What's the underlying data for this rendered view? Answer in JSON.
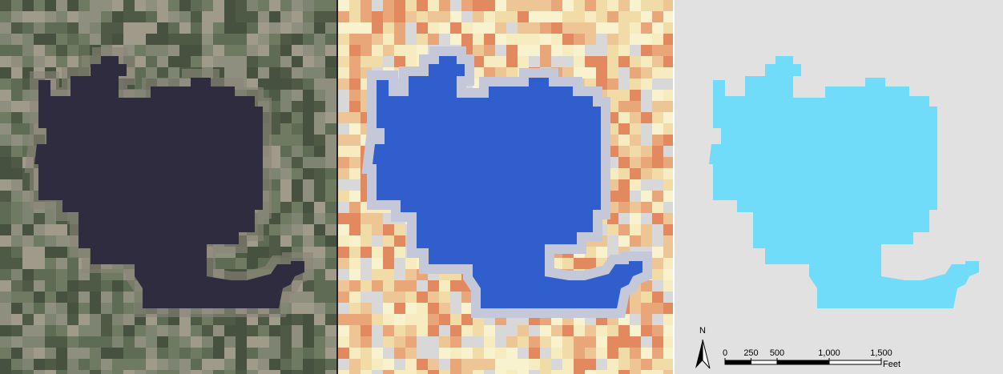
{
  "north_arrow": {
    "label": "N"
  },
  "scale_bar": {
    "ticks": [
      0,
      250,
      500,
      {
        "value": 1000,
        "label": "1,000"
      },
      {
        "value": 1500,
        "label": "1,500"
      }
    ],
    "unit": "Feet"
  }
}
